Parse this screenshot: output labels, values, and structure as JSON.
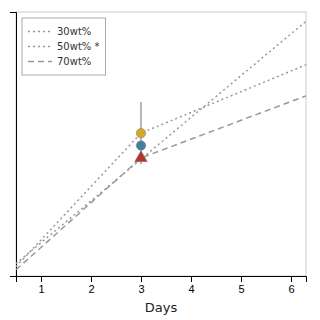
{
  "chart_data": {
    "type": "line",
    "xlabel": "Days",
    "xlim": [
      0.5,
      6.3
    ],
    "ylim": [
      0.0,
      0.85
    ],
    "xticks": [
      1,
      2,
      3,
      4,
      5,
      6
    ],
    "yticks": [],
    "tick_labels": "x",
    "legend": "upper left",
    "series": [
      {
        "name": "30wt%",
        "type": "line",
        "x": [
          0.5,
          6.3
        ],
        "values": [
          0.04,
          0.82
        ],
        "color": "#999999",
        "line_style": "dotted"
      },
      {
        "name": "50wt% *",
        "type": "line",
        "x": [
          0.5,
          3.0,
          6.3
        ],
        "values": [
          0.03,
          0.46,
          0.68
        ],
        "color": "#999999",
        "line_style": "dotted"
      },
      {
        "name": "70wt%",
        "type": "line",
        "x": [
          0.5,
          3.0,
          6.3
        ],
        "values": [
          0.02,
          0.38,
          0.58
        ],
        "color": "#999999",
        "line_style": "dashed"
      },
      {
        "type": "scatter",
        "x": [
          3.0
        ],
        "values": [
          0.46
        ],
        "errors": [
          0.1
        ],
        "color": "#d4a820",
        "marker": "circle"
      },
      {
        "type": "scatter",
        "x": [
          3.0
        ],
        "values": [
          0.38
        ],
        "color": "#b83030",
        "marker": "triangle"
      },
      {
        "type": "scatter",
        "x": [
          3.0
        ],
        "values": [
          0.42
        ],
        "color": "#4080a0",
        "marker": "circle"
      }
    ]
  }
}
